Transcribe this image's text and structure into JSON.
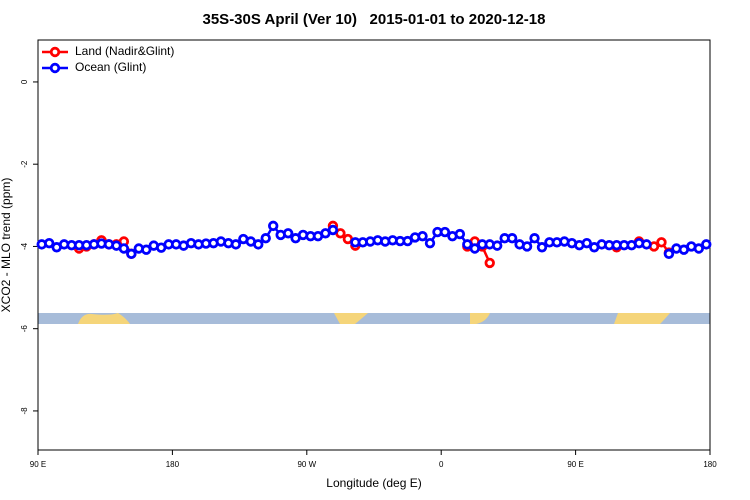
{
  "chart_data": {
    "type": "line",
    "title": "35S-30S April (Ver 10)   2015-01-01 to 2020-12-18",
    "x_label": "Longitude (deg E)",
    "y_label": "XCO2 - MLO trend (ppm)",
    "x": [
      92.5,
      97.5,
      102.5,
      107.5,
      112.5,
      117.5,
      122.5,
      127.5,
      132.5,
      137.5,
      142.5,
      147.5,
      152.5,
      157.5,
      162.5,
      167.5,
      172.5,
      177.5,
      182.5,
      187.5,
      192.5,
      197.5,
      202.5,
      207.5,
      212.5,
      217.5,
      222.5,
      227.5,
      232.5,
      237.5,
      242.5,
      247.5,
      252.5,
      257.5,
      262.5,
      267.5,
      272.5,
      277.5,
      282.5,
      287.5,
      292.5,
      297.5,
      302.5,
      307.5,
      312.5,
      317.5,
      322.5,
      327.5,
      332.5,
      337.5,
      342.5,
      347.5,
      352.5,
      357.5,
      362.5,
      367.5,
      372.5,
      377.5,
      382.5,
      387.5,
      392.5,
      397.5,
      402.5,
      407.5,
      412.5,
      417.5,
      422.5,
      427.5,
      432.5,
      437.5,
      442.5,
      447.5,
      452.5,
      457.5,
      462.5,
      467.5,
      472.5,
      477.5,
      482.5,
      487.5,
      492.5,
      497.5,
      502.5,
      507.5,
      512.5,
      517.5,
      522.5,
      527.5,
      532.5,
      537.5
    ],
    "series": [
      {
        "name": "Land (Nadir&Glint)",
        "color": "#ff0000",
        "values": [
          null,
          null,
          null,
          null,
          null,
          -4.05,
          -4.0,
          -3.95,
          -3.85,
          -3.95,
          -3.95,
          -3.88,
          -4.18,
          null,
          null,
          null,
          null,
          null,
          null,
          null,
          null,
          null,
          null,
          null,
          null,
          null,
          null,
          null,
          null,
          null,
          null,
          null,
          null,
          null,
          null,
          null,
          null,
          null,
          null,
          -3.5,
          -3.68,
          -3.82,
          -3.98,
          null,
          null,
          null,
          null,
          null,
          null,
          null,
          null,
          null,
          null,
          null,
          null,
          null,
          null,
          -4.0,
          -3.88,
          -4.0,
          -4.4,
          null,
          null,
          null,
          null,
          null,
          null,
          null,
          null,
          null,
          null,
          null,
          null,
          null,
          null,
          null,
          null,
          -4.02,
          null,
          null,
          -3.88,
          null,
          -4.0,
          -3.9,
          -4.15,
          null,
          null,
          null,
          null,
          null
        ]
      },
      {
        "name": "Ocean (Glint)",
        "color": "#0000ff",
        "values": [
          -3.95,
          -3.92,
          -4.02,
          -3.95,
          -3.97,
          -3.97,
          -3.97,
          -3.95,
          -3.93,
          -3.95,
          -3.98,
          -4.05,
          -4.18,
          -4.05,
          -4.08,
          -3.98,
          -4.03,
          -3.95,
          -3.95,
          -3.98,
          -3.92,
          -3.95,
          -3.93,
          -3.92,
          -3.88,
          -3.92,
          -3.95,
          -3.82,
          -3.88,
          -3.95,
          -3.8,
          -3.5,
          -3.72,
          -3.68,
          -3.8,
          -3.72,
          -3.75,
          -3.75,
          -3.68,
          -3.6,
          null,
          null,
          -3.9,
          -3.9,
          -3.88,
          -3.85,
          -3.88,
          -3.85,
          -3.87,
          -3.87,
          -3.78,
          -3.75,
          -3.92,
          -3.65,
          -3.65,
          -3.75,
          -3.7,
          -3.95,
          -4.05,
          -3.95,
          -3.95,
          -3.98,
          -3.8,
          -3.8,
          -3.95,
          -4.0,
          -3.8,
          -4.02,
          -3.9,
          -3.9,
          -3.88,
          -3.92,
          -3.97,
          -3.92,
          -4.02,
          -3.95,
          -3.97,
          -3.97,
          -3.97,
          -3.97,
          -3.92,
          -3.95,
          null,
          null,
          -4.18,
          -4.05,
          -4.08,
          -4.0,
          -4.05,
          -3.95
        ]
      }
    ],
    "xlim": [
      90,
      540
    ],
    "xticks": [
      {
        "value": 90,
        "label": "90 E"
      },
      180,
      {
        "value": 270,
        "label": "90 W"
      },
      {
        "value": 360,
        "label": "0"
      },
      {
        "value": 450,
        "label": "90 E"
      },
      {
        "value": 540,
        "label": "180"
      }
    ],
    "ylim": [
      -8.95,
      1.02
    ],
    "yticks": [
      0,
      -2,
      -4,
      -6,
      -8
    ],
    "legend": "top-left"
  }
}
